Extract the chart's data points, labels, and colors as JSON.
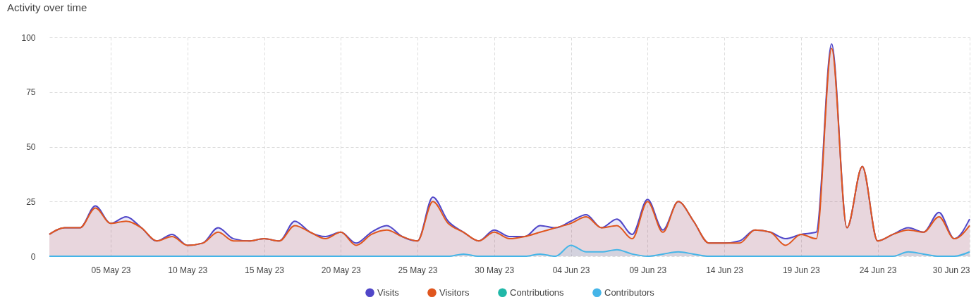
{
  "chart_data": {
    "type": "area",
    "title": "Activity over time",
    "x": [
      "--05-01",
      "--05-02",
      "--05-03",
      "--05-04",
      "--05-05",
      "--05-06",
      "--05-07",
      "--05-08",
      "--05-09",
      "--05-10",
      "--05-11",
      "--05-12",
      "--05-13",
      "--05-14",
      "--05-15",
      "--05-16",
      "--05-17",
      "--05-18",
      "--05-19",
      "--05-20",
      "--05-21",
      "--05-22",
      "--05-23",
      "--05-24",
      "--05-25",
      "--05-26",
      "--05-27",
      "--05-28",
      "--05-29",
      "--05-30",
      "--05-31",
      "--06-01",
      "--06-02",
      "--06-03",
      "--06-04",
      "--06-05",
      "--06-06",
      "--06-07",
      "--06-08",
      "--06-09",
      "--06-10",
      "--06-11",
      "--06-12",
      "--06-13",
      "--06-14",
      "--06-15",
      "--06-16",
      "--06-17",
      "--06-18",
      "--06-19",
      "--06-20",
      "--06-21",
      "--06-22",
      "--06-23",
      "--06-24",
      "--06-25",
      "--06-26",
      "--06-27",
      "--06-28",
      "--06-29",
      "--06-30"
    ],
    "series": [
      {
        "name": "Visits",
        "color": "#5046c8",
        "values": [
          10,
          13,
          13,
          23,
          15,
          18,
          13,
          7,
          10,
          5,
          6,
          13,
          8,
          7,
          8,
          7,
          16,
          11,
          9,
          11,
          6,
          11,
          14,
          9,
          7,
          27,
          16,
          11,
          7,
          12,
          9,
          9,
          14,
          13,
          16,
          19,
          13,
          17,
          10,
          26,
          12,
          25,
          16,
          6,
          6,
          7,
          12,
          11,
          8,
          10,
          11,
          97,
          13,
          41,
          7,
          10,
          13,
          11,
          20,
          8,
          17
        ]
      },
      {
        "name": "Visitors",
        "color": "#e0561e",
        "values": [
          10,
          13,
          13,
          22,
          15,
          16,
          13,
          7,
          9,
          5,
          6,
          11,
          7,
          7,
          8,
          7,
          14,
          11,
          8,
          11,
          5,
          10,
          12,
          9,
          7,
          25,
          15,
          11,
          7,
          11,
          8,
          9,
          11,
          13,
          15,
          18,
          13,
          14,
          8,
          25,
          11,
          25,
          16,
          6,
          6,
          6,
          12,
          11,
          5,
          10,
          8,
          95,
          13,
          41,
          7,
          10,
          12,
          11,
          18,
          8,
          14
        ]
      },
      {
        "name": "Contributions",
        "color": "#20b8a8",
        "values": [
          null,
          null,
          null,
          null,
          null,
          null,
          null,
          null,
          null,
          null,
          null,
          null,
          null,
          null,
          null,
          null,
          null,
          null,
          null,
          null,
          null,
          null,
          null,
          null,
          null,
          null,
          null,
          null,
          null,
          null,
          null,
          null,
          null,
          null,
          null,
          null,
          null,
          null,
          null,
          null,
          null,
          null,
          null,
          null,
          null,
          null,
          null,
          null,
          null,
          null,
          null,
          null,
          null,
          null,
          null,
          null,
          null,
          null,
          null,
          null,
          null
        ]
      },
      {
        "name": "Contributors",
        "color": "#45b5e8",
        "values": [
          0,
          0,
          0,
          0,
          0,
          0,
          0,
          0,
          0,
          0,
          0,
          0,
          0,
          0,
          0,
          0,
          0,
          0,
          0,
          0,
          0,
          0,
          0,
          0,
          0,
          0,
          0,
          1,
          0,
          0,
          0,
          0,
          1,
          0,
          5,
          2,
          2,
          3,
          1,
          0,
          1,
          2,
          1,
          0,
          0,
          0,
          0,
          0,
          0,
          0,
          0,
          0,
          0,
          0,
          0,
          0,
          2,
          1,
          0,
          0,
          2
        ]
      }
    ],
    "xlim": [
      "--05-01",
      "--06-30"
    ],
    "xticks": [
      {
        "value": "--05-05",
        "label": "05 May 23"
      },
      {
        "value": "--05-10",
        "label": "10 May 23"
      },
      {
        "value": "--05-15",
        "label": "15 May 23"
      },
      {
        "value": "--05-20",
        "label": "20 May 23"
      },
      {
        "value": "--05-25",
        "label": "25 May 23"
      },
      {
        "value": "--05-30",
        "label": "30 May 23"
      },
      {
        "value": "--06-04",
        "label": "04 Jun 23"
      },
      {
        "value": "--06-09",
        "label": "09 Jun 23"
      },
      {
        "value": "--06-14",
        "label": "14 Jun 23"
      },
      {
        "value": "--06-19",
        "label": "19 Jun 23"
      },
      {
        "value": "--06-24",
        "label": "24 Jun 23"
      },
      {
        "value": "--06-30",
        "label": "30 Jun 23"
      }
    ],
    "ylim": [
      0,
      100
    ],
    "yticks": [
      0,
      25,
      50,
      75,
      100
    ],
    "grid": true,
    "legend": "bottom",
    "marker": "none",
    "line_style": "solid"
  }
}
